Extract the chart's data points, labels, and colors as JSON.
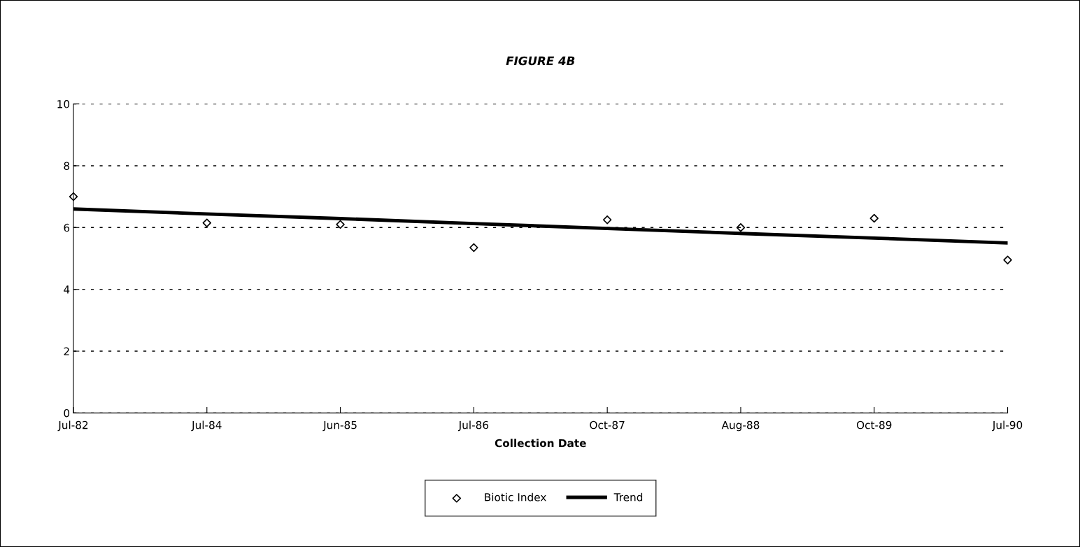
{
  "chart_data": {
    "type": "scatter",
    "title": "FIGURE 4B",
    "xlabel": "Collection Date",
    "categories": [
      "Jul-82",
      "Jul-84",
      "Jun-85",
      "Jul-86",
      "Oct-87",
      "Aug-88",
      "Oct-89",
      "Jul-90"
    ],
    "series": [
      {
        "name": "Biotic Index",
        "color": "#000000",
        "marker": "diamond",
        "values": [
          7.0,
          6.15,
          6.1,
          5.35,
          6.25,
          6.0,
          6.3,
          4.95
        ]
      },
      {
        "name": "Trend",
        "type": "line",
        "color": "#000000",
        "marker": "none",
        "line_style": "solid",
        "values": [
          6.6,
          6.44,
          6.29,
          6.13,
          5.97,
          5.81,
          5.66,
          5.5
        ]
      }
    ],
    "ylim": [
      0,
      10
    ],
    "yticks": [
      0,
      2,
      4,
      6,
      8,
      10
    ],
    "grid": "y",
    "legend": "bottom"
  }
}
